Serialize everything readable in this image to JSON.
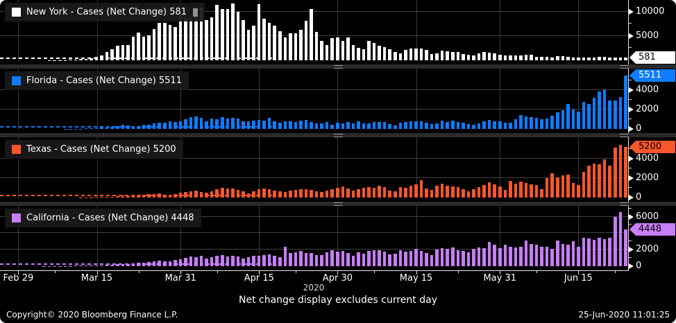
{
  "caption": "Net change display excludes current day",
  "footer": {
    "copyright": "Copyright© 2020 Bloomberg Finance L.P.",
    "timestamp": "25-Jun-2020 11:01:25"
  },
  "colors": {
    "background": "#000000",
    "gridline": "#424242",
    "separator": "#2a2a2a",
    "new_york": "#ffffff",
    "florida": "#0f7cff",
    "texas": "#f8562b",
    "california": "#c77df6"
  },
  "chart_data": {
    "type": "bar",
    "x": {
      "start": "2020-02-26",
      "end": "2020-06-24",
      "slots": 120,
      "year_label": "2020",
      "ticks": [
        {
          "label": "Feb 29",
          "slot": 3
        },
        {
          "label": "Mar 15",
          "slot": 18
        },
        {
          "label": "Mar 31",
          "slot": 34
        },
        {
          "label": "Apr 15",
          "slot": 49
        },
        {
          "label": "Apr 30",
          "slot": 64
        },
        {
          "label": "May 15",
          "slot": 79
        },
        {
          "label": "May 31",
          "slot": 95
        },
        {
          "label": "Jun 15",
          "slot": 110
        }
      ],
      "minor_slots": [
        10,
        26,
        41,
        56,
        71,
        87,
        102,
        117
      ]
    },
    "panels": [
      {
        "id": "new-york",
        "name": "New York",
        "metric": "Cases (Net Change)",
        "legend_label": "New York - Cases (Net Change) 581",
        "last_label": "581",
        "last_value": 581,
        "color": "#ffffff",
        "badge_fg": "#000000",
        "has_cursor": true,
        "ymax": 12400,
        "gridlines": [
          5000,
          10000
        ],
        "ytick_labels": [
          {
            "value": 10000,
            "label": "10000"
          },
          {
            "value": 5000,
            "label": "5000"
          }
        ],
        "yticks_minor": [
          2500,
          7500
        ],
        "values": [
          0,
          0,
          0,
          0,
          0,
          0,
          2,
          5,
          9,
          14,
          24,
          45,
          60,
          105,
          160,
          220,
          320,
          430,
          730,
          980,
          1770,
          2300,
          2950,
          3200,
          3100,
          4820,
          5700,
          4790,
          5150,
          6450,
          7700,
          7680,
          7200,
          6900,
          9300,
          8640,
          8700,
          10480,
          10840,
          8330,
          8900,
          11430,
          10620,
          10610,
          11660,
          9940,
          8240,
          6340,
          7180,
          11570,
          8500,
          7750,
          7090,
          6050,
          4730,
          5530,
          5520,
          6240,
          8130,
          10550,
          5900,
          3950,
          3110,
          4590,
          4680,
          3940,
          4660,
          3120,
          2540,
          2240,
          4000,
          3540,
          2940,
          2710,
          2270,
          1660,
          1430,
          2180,
          2390,
          2420,
          2420,
          2170,
          1250,
          1470,
          2000,
          1800,
          1740,
          1770,
          1250,
          1110,
          1070,
          1370,
          1770,
          1550,
          1380,
          1110,
          940,
          1070,
          1050,
          1050,
          1110,
          1080,
          780,
          700,
          730,
          620,
          790,
          810,
          730,
          620,
          630,
          580,
          620,
          620,
          700,
          720,
          560,
          580,
          600,
          581
        ]
      },
      {
        "id": "florida",
        "name": "Florida",
        "metric": "Cases (Net Change)",
        "legend_label": "Florida - Cases (Net Change) 5511",
        "last_label": "5511",
        "last_value": 5511,
        "color": "#0f7cff",
        "badge_fg": "#ffffff",
        "has_cursor": false,
        "ymax": 6200,
        "gridlines": [
          2000,
          4000
        ],
        "ytick_labels": [
          {
            "value": 4000,
            "label": "4000"
          },
          {
            "value": 2000,
            "label": "2000"
          },
          {
            "value": 0,
            "label": "0"
          }
        ],
        "yticks_minor": [
          1000,
          3000,
          5000
        ],
        "values": [
          0,
          0,
          0,
          0,
          0,
          0,
          0,
          0,
          0,
          0,
          2,
          4,
          7,
          10,
          15,
          30,
          45,
          75,
          100,
          125,
          160,
          190,
          260,
          420,
          370,
          300,
          310,
          410,
          440,
          560,
          660,
          630,
          750,
          680,
          780,
          1030,
          1190,
          1310,
          1160,
          750,
          1050,
          990,
          1180,
          1080,
          1130,
          1040,
          800,
          750,
          870,
          910,
          860,
          1120,
          770,
          620,
          760,
          790,
          730,
          850,
          920,
          690,
          580,
          600,
          700,
          420,
          640,
          560,
          710,
          600,
          800,
          540,
          580,
          740,
          710,
          680,
          500,
          380,
          610,
          700,
          820,
          800,
          790,
          620,
          500,
          600,
          830,
          720,
          840,
          740,
          620,
          520,
          450,
          570,
          800,
          930,
          820,
          750,
          670,
          620,
          1000,
          1420,
          1300,
          1180,
          1110,
          970,
          1100,
          1370,
          1700,
          1900,
          2580,
          2020,
          1750,
          2780,
          2600,
          3210,
          3820,
          4050,
          2930,
          2920,
          3290,
          5511
        ]
      },
      {
        "id": "texas",
        "name": "Texas",
        "metric": "Cases (Net Change)",
        "legend_label": "Texas - Cases (Net Change) 5200",
        "last_label": "5200",
        "last_value": 5200,
        "color": "#f8562b",
        "badge_fg": "#000000",
        "has_cursor": false,
        "ymax": 6200,
        "gridlines": [
          2000,
          4000
        ],
        "ytick_labels": [
          {
            "value": 4000,
            "label": "4000"
          },
          {
            "value": 2000,
            "label": "2000"
          },
          {
            "value": 0,
            "label": "0"
          }
        ],
        "yticks_minor": [
          1000,
          3000,
          5000
        ],
        "values": [
          0,
          0,
          0,
          0,
          0,
          0,
          0,
          0,
          0,
          0,
          0,
          0,
          0,
          0,
          5,
          10,
          15,
          25,
          40,
          55,
          80,
          100,
          140,
          180,
          170,
          190,
          240,
          300,
          340,
          380,
          400,
          310,
          280,
          330,
          510,
          560,
          660,
          720,
          580,
          520,
          650,
          880,
          970,
          950,
          900,
          820,
          610,
          450,
          670,
          850,
          930,
          890,
          740,
          630,
          570,
          720,
          810,
          850,
          890,
          750,
          610,
          560,
          690,
          850,
          980,
          1140,
          900,
          740,
          880,
          1000,
          1050,
          1020,
          1210,
          1080,
          730,
          620,
          1060,
          990,
          1180,
          1350,
          1800,
          930,
          820,
          1240,
          1400,
          1220,
          1110,
          1050,
          830,
          620,
          880,
          1080,
          1250,
          1560,
          1340,
          1130,
          820,
          1690,
          1420,
          1620,
          1520,
          1380,
          1250,
          890,
          2020,
          2500,
          2050,
          2270,
          2330,
          1520,
          1250,
          2620,
          3280,
          3520,
          3450,
          3900,
          3270,
          5100,
          5400,
          5200
        ]
      },
      {
        "id": "california",
        "name": "California",
        "metric": "Cases (Net Change)",
        "legend_label": "California - Cases (Net Change) 4448",
        "last_label": "4448",
        "last_value": 4448,
        "color": "#c77df6",
        "badge_fg": "#000000",
        "has_cursor": false,
        "ymax": 7300,
        "gridlines": [
          2000,
          4000,
          6000
        ],
        "ytick_labels": [
          {
            "value": 6000,
            "label": "6000"
          },
          {
            "value": 2000,
            "label": "2000"
          },
          {
            "value": 0,
            "label": "0"
          }
        ],
        "yticks_minor": [
          1000,
          3000,
          5000,
          7000
        ],
        "values": [
          0,
          0,
          0,
          0,
          0,
          2,
          3,
          5,
          8,
          10,
          14,
          20,
          28,
          38,
          45,
          55,
          65,
          80,
          95,
          110,
          130,
          160,
          220,
          260,
          290,
          340,
          430,
          460,
          510,
          590,
          680,
          620,
          560,
          740,
          840,
          1030,
          1210,
          1100,
          1220,
          940,
          1080,
          1290,
          1340,
          1210,
          1250,
          1150,
          960,
          1080,
          1300,
          1220,
          1320,
          1410,
          1220,
          1070,
          2330,
          1570,
          1720,
          1850,
          1620,
          1560,
          1310,
          1350,
          1670,
          1920,
          1780,
          1850,
          1620,
          1300,
          1690,
          1550,
          1820,
          1890,
          1900,
          1760,
          1410,
          1550,
          1920,
          1760,
          1850,
          2060,
          1880,
          1570,
          1340,
          2040,
          2180,
          2130,
          2250,
          1970,
          1860,
          1680,
          2060,
          2230,
          2200,
          2900,
          2620,
          2220,
          2570,
          2340,
          2290,
          2320,
          3090,
          2660,
          2580,
          2310,
          2340,
          2100,
          3090,
          2690,
          2580,
          3000,
          2350,
          3400,
          3330,
          3190,
          3470,
          3270,
          3400,
          6000,
          6550,
          4448
        ]
      }
    ]
  }
}
